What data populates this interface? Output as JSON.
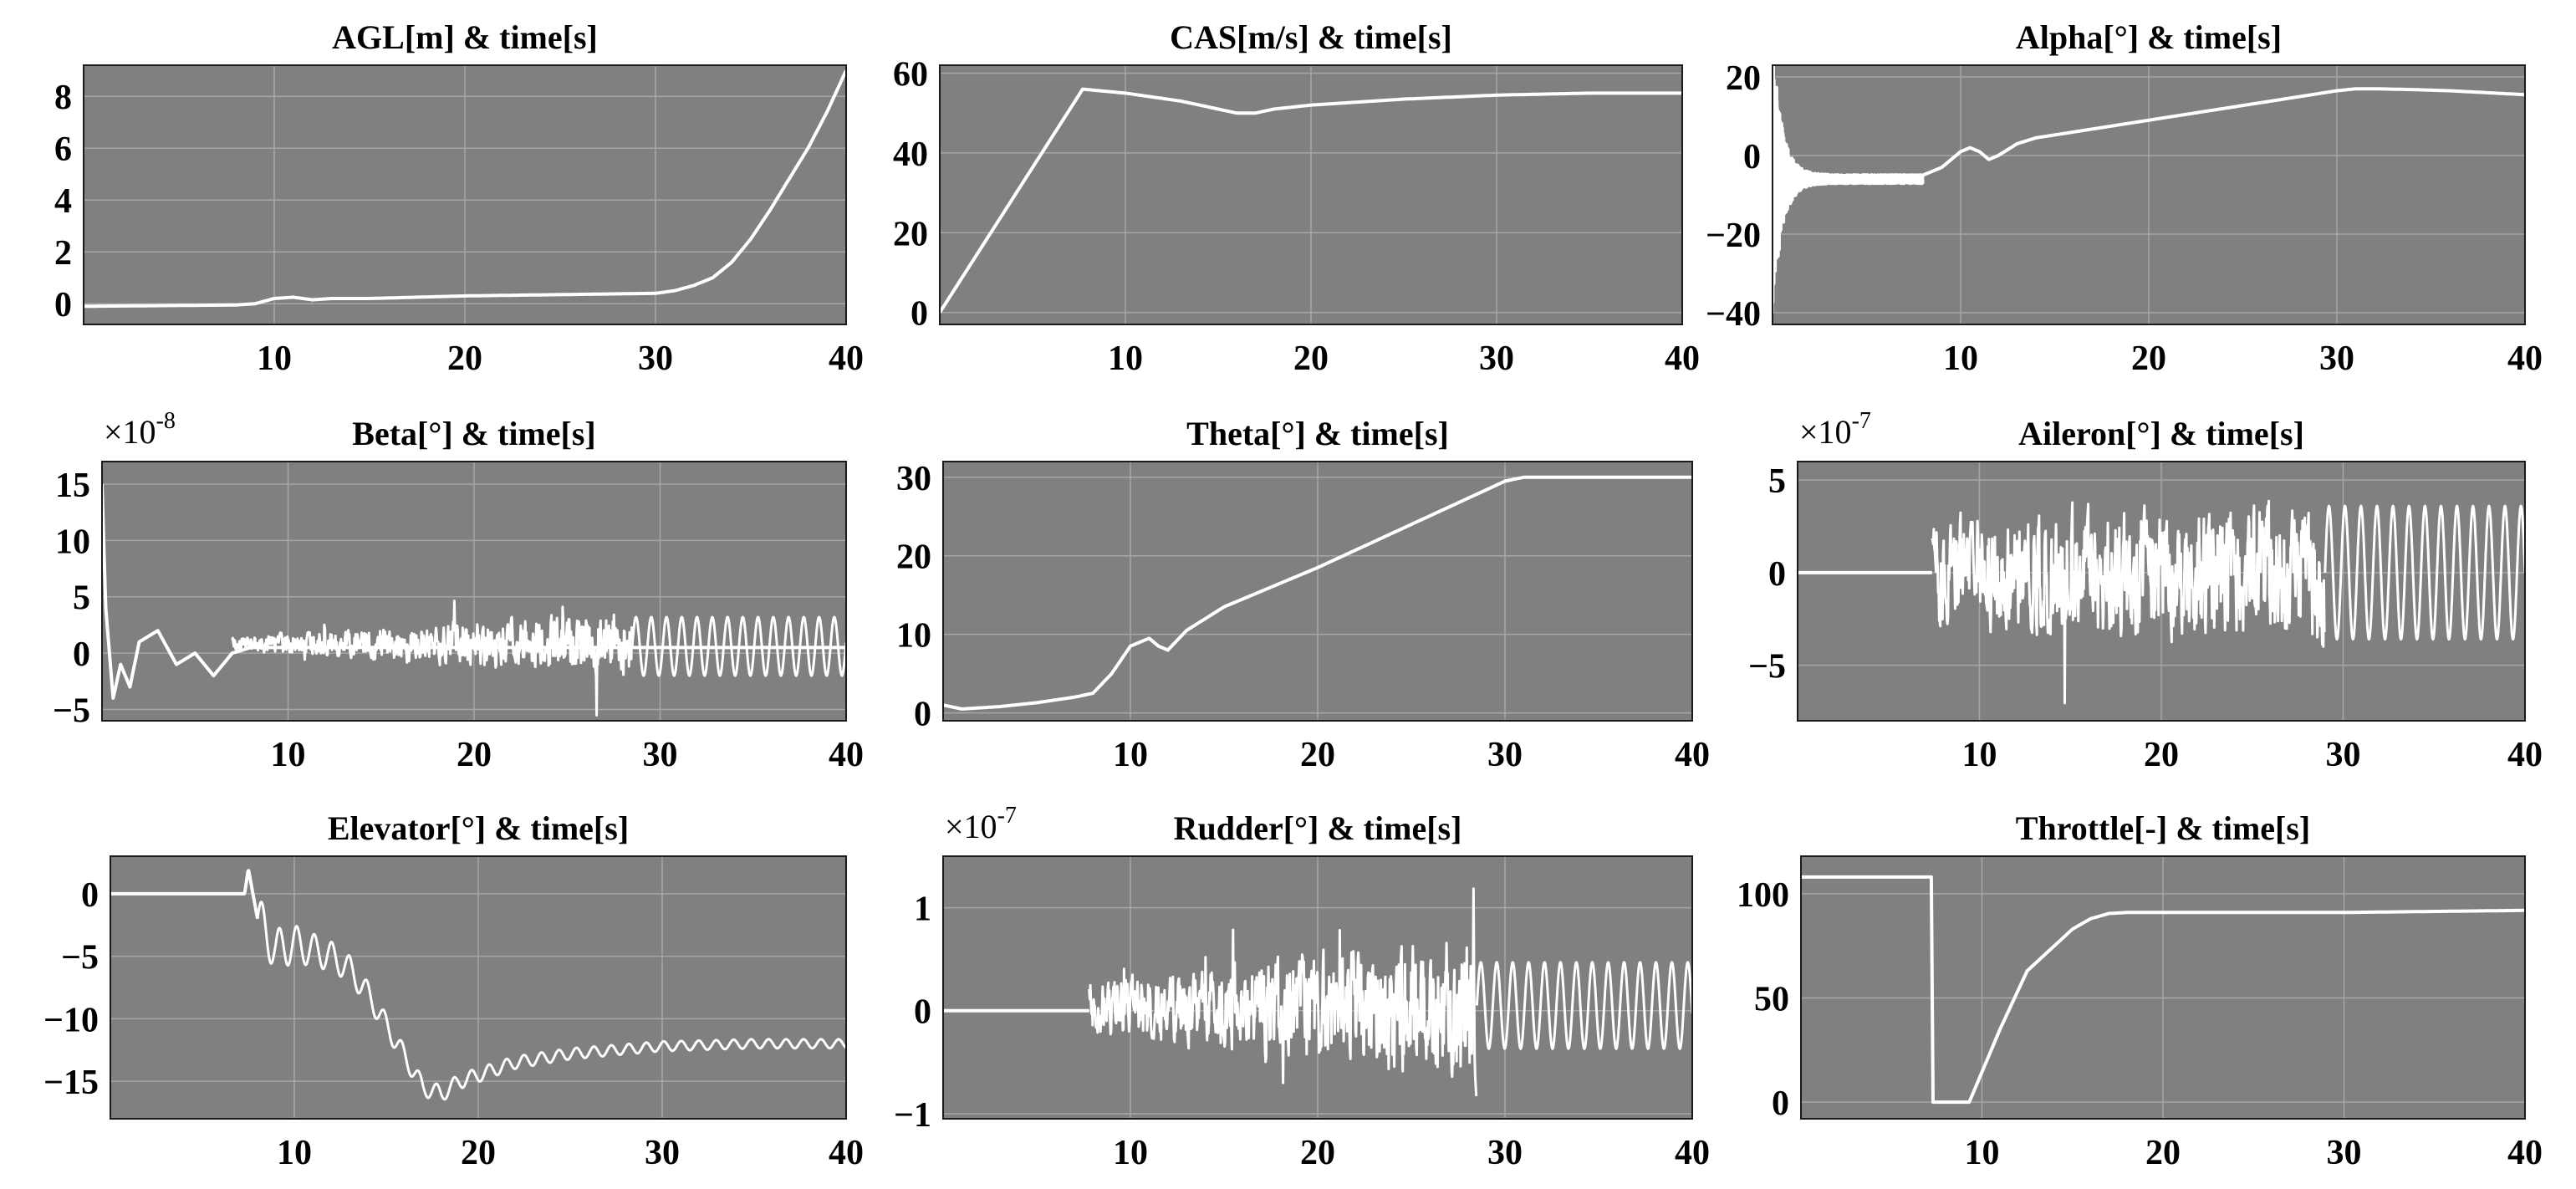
{
  "colors": {
    "plot_bg": "#808080",
    "grid": "#a6a6a6",
    "line": "#ffffff",
    "frame": "#1a1a1a"
  },
  "chart_data": [
    {
      "id": "agl",
      "type": "line",
      "title": "AGL[m]  & time[s]",
      "xlim": [
        0,
        40
      ],
      "ylim": [
        -0.8,
        9.2
      ],
      "xticks": [
        10,
        20,
        30,
        40
      ],
      "yticks": [
        0,
        2,
        4,
        6,
        8
      ],
      "grid": true,
      "exponent_label": "",
      "series": [
        {
          "signal": "smooth",
          "x": [
            0,
            8,
            9,
            10,
            11,
            12,
            13,
            15,
            20,
            25,
            30,
            31,
            32,
            33,
            34,
            35,
            36,
            37,
            38,
            39,
            40
          ],
          "y": [
            -0.1,
            -0.05,
            0.0,
            0.2,
            0.25,
            0.15,
            0.2,
            0.2,
            0.3,
            0.35,
            0.4,
            0.5,
            0.7,
            1.0,
            1.6,
            2.5,
            3.6,
            4.8,
            6.0,
            7.4,
            9.0
          ]
        }
      ]
    },
    {
      "id": "cas",
      "type": "line",
      "title": "CAS[m/s]  & time[s]",
      "xlim": [
        0,
        40
      ],
      "ylim": [
        -3,
        62
      ],
      "xticks": [
        10,
        20,
        30,
        40
      ],
      "yticks": [
        0,
        20,
        40,
        60
      ],
      "grid": true,
      "exponent_label": "",
      "series": [
        {
          "signal": "smooth",
          "x": [
            0,
            7.7,
            10,
            13,
            15,
            16,
            17,
            18,
            20,
            25,
            30,
            35,
            40
          ],
          "y": [
            0,
            56,
            55,
            53,
            51,
            50,
            50,
            51,
            52,
            53.5,
            54.5,
            55,
            55
          ]
        }
      ]
    },
    {
      "id": "alpha",
      "type": "line",
      "title": "Alpha[°]  & time[s]",
      "xlim": [
        0,
        40
      ],
      "ylim": [
        -43,
        23
      ],
      "xticks": [
        10,
        20,
        30,
        40
      ],
      "yticks": [
        -40,
        -20,
        0,
        20
      ],
      "grid": true,
      "exponent_label": "",
      "series": [
        {
          "signal": "smooth",
          "x": [
            0,
            2,
            4,
            6,
            8,
            9,
            10,
            10.5,
            11,
            11.5,
            12,
            13,
            14,
            16,
            18,
            20,
            22,
            24,
            26,
            28,
            30,
            31,
            32,
            34,
            36,
            38,
            40
          ],
          "y": [
            -7,
            -6,
            -5.5,
            -5,
            -5,
            -3,
            1,
            2,
            1,
            -1,
            0,
            3,
            4.5,
            6,
            7.5,
            9,
            10.5,
            12,
            13.5,
            15,
            16.5,
            17,
            17,
            16.8,
            16.5,
            16,
            15.5
          ]
        },
        {
          "signal": "decay",
          "t0": 0,
          "t1": 8,
          "center": -6,
          "amp": 36,
          "tau": 0.5,
          "period": 0.08
        }
      ]
    },
    {
      "id": "beta",
      "type": "line",
      "title": "Beta[°]  & time[s]",
      "xlim": [
        0,
        40
      ],
      "ylim": [
        -6,
        17
      ],
      "xticks": [
        10,
        20,
        30,
        40
      ],
      "yticks": [
        -5,
        0,
        5,
        10,
        15
      ],
      "grid": true,
      "exponent_label": "×10",
      "exponent_power": "-8",
      "series": [
        {
          "signal": "smooth",
          "x": [
            0,
            0.2,
            0.6,
            1,
            1.5,
            2,
            3,
            4,
            5,
            6,
            7,
            8,
            40
          ],
          "y": [
            15,
            4,
            -4,
            -1,
            -3,
            1,
            2,
            -1,
            0,
            -2,
            0,
            0.5,
            0.5
          ]
        },
        {
          "signal": "noise",
          "t0": 7,
          "t1": 28.5,
          "amp0": 0.8,
          "amp1": 3.5,
          "offset": 0.8
        },
        {
          "signal": "sine",
          "t0": 28.5,
          "t1": 40,
          "center": 0.6,
          "amp": 2.6,
          "period": 0.82
        }
      ]
    },
    {
      "id": "theta",
      "type": "line",
      "title": "Theta[°]  & time[s]",
      "xlim": [
        0,
        40
      ],
      "ylim": [
        -1,
        32
      ],
      "xticks": [
        10,
        20,
        30,
        40
      ],
      "yticks": [
        0,
        10,
        20,
        30
      ],
      "grid": true,
      "exponent_label": "",
      "series": [
        {
          "signal": "smooth",
          "x": [
            0,
            1,
            3,
            5,
            7,
            8,
            9,
            10,
            11,
            11.5,
            12,
            13,
            15,
            18,
            20,
            25,
            30,
            31,
            32,
            35,
            40
          ],
          "y": [
            1,
            0.5,
            0.8,
            1.3,
            2.0,
            2.5,
            5,
            8.5,
            9.5,
            8.5,
            8,
            10.5,
            13.5,
            16.5,
            18.5,
            24,
            29.5,
            30,
            30,
            30,
            30
          ]
        }
      ]
    },
    {
      "id": "aileron",
      "type": "line",
      "title": "Aileron[°]  & time[s]",
      "xlim": [
        0,
        40
      ],
      "ylim": [
        -8,
        6
      ],
      "xticks": [
        10,
        20,
        30,
        40
      ],
      "yticks": [
        -5,
        0,
        5
      ],
      "grid": true,
      "exponent_label": "×10",
      "exponent_power": "-7",
      "series": [
        {
          "signal": "smooth",
          "x": [
            0,
            7.4
          ],
          "y": [
            0,
            0
          ]
        },
        {
          "signal": "noise",
          "t0": 7.4,
          "t1": 29,
          "amp0": 3.5,
          "amp1": 4.8,
          "offset": 0
        },
        {
          "signal": "sine",
          "t0": 29,
          "t1": 40,
          "center": 0,
          "amp": 3.6,
          "period": 0.88
        }
      ]
    },
    {
      "id": "elevator",
      "type": "line",
      "title": "Elevator[°]  & time[s]",
      "xlim": [
        0,
        40
      ],
      "ylim": [
        -18,
        3
      ],
      "xticks": [
        10,
        20,
        30,
        40
      ],
      "yticks": [
        -15,
        -10,
        -5,
        0
      ],
      "grid": true,
      "exponent_label": "",
      "series": [
        {
          "signal": "smooth",
          "x": [
            0,
            7.3,
            7.5,
            8,
            9,
            10,
            11,
            12,
            13,
            14,
            15,
            16,
            17,
            18,
            19,
            20,
            22,
            25,
            30,
            35,
            40
          ],
          "y": [
            0,
            0,
            2,
            -2,
            -4.5,
            -4,
            -4.5,
            -5,
            -6,
            -8,
            -10.5,
            -13,
            -15.5,
            -16,
            -15,
            -14.5,
            -13.5,
            -12.8,
            -12.2,
            -12,
            -12
          ]
        },
        {
          "signal": "sine",
          "t0": 8,
          "t1": 40,
          "center": 0,
          "amp": 3.2,
          "period": 0.95,
          "tau": 6,
          "additive": true
        }
      ]
    },
    {
      "id": "rudder",
      "type": "line",
      "title": "Rudder[°]  & time[s]",
      "xlim": [
        0,
        40
      ],
      "ylim": [
        -1.05,
        1.5
      ],
      "xticks": [
        10,
        20,
        30,
        40
      ],
      "yticks": [
        -1,
        0,
        1
      ],
      "grid": true,
      "exponent_label": "×10",
      "exponent_power": "-7",
      "series": [
        {
          "signal": "smooth",
          "x": [
            0,
            7.8
          ],
          "y": [
            0,
            0
          ]
        },
        {
          "signal": "noise",
          "t0": 7.8,
          "t1": 28.5,
          "amp0": 0.3,
          "amp1": 0.9,
          "offset": 0.02
        },
        {
          "signal": "sine",
          "t0": 28.5,
          "t1": 40,
          "center": 0.05,
          "amp": 0.42,
          "period": 0.85
        }
      ]
    },
    {
      "id": "throttle",
      "type": "line",
      "title": "Throttle[-]  & time[s]",
      "xlim": [
        0,
        40
      ],
      "ylim": [
        -8,
        118
      ],
      "xticks": [
        10,
        20,
        30,
        40
      ],
      "yticks": [
        0,
        50,
        100
      ],
      "grid": true,
      "exponent_label": "",
      "series": [
        {
          "signal": "smooth",
          "x": [
            0,
            7.2,
            7.3,
            9.3,
            11,
            12.5,
            14,
            15,
            16,
            17,
            18,
            20,
            25,
            30,
            35,
            40
          ],
          "y": [
            108,
            108,
            0,
            0,
            35,
            63,
            75,
            83,
            88,
            90.5,
            91,
            91,
            91,
            91,
            91.5,
            92
          ]
        }
      ]
    }
  ]
}
